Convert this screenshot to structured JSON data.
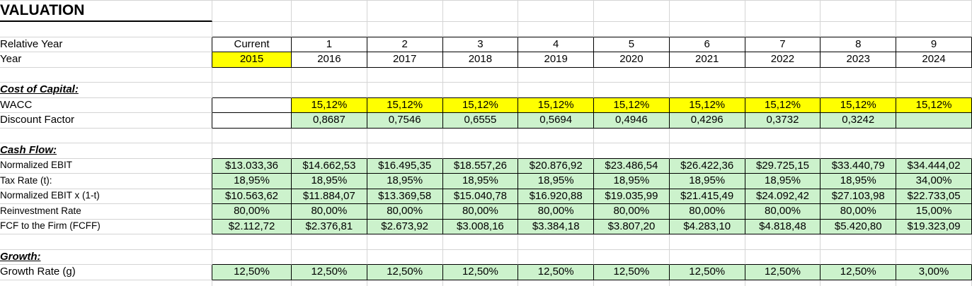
{
  "title": "VALUATION",
  "colors": {
    "yellow": "#FFFF00",
    "green": "#CCF2CC",
    "white": "#FFFFFF",
    "gridline": "#D4D4D4",
    "box_border": "#000000"
  },
  "rows": [
    {
      "type": "title",
      "label": "VALUATION"
    },
    {
      "type": "empty"
    },
    {
      "type": "data",
      "label": "Relative Year",
      "fill": "white",
      "cells": [
        "Current",
        "1",
        "2",
        "3",
        "4",
        "5",
        "6",
        "7",
        "8",
        "9"
      ]
    },
    {
      "type": "data",
      "label": "Year",
      "fill": "white",
      "cell_fills": {
        "0": "yellow"
      },
      "cells": [
        "2015",
        "2016",
        "2017",
        "2018",
        "2019",
        "2020",
        "2021",
        "2022",
        "2023",
        "2024"
      ]
    },
    {
      "type": "empty"
    },
    {
      "type": "section",
      "label": "Cost of Capital:"
    },
    {
      "type": "data",
      "label": "WACC",
      "fill": "yellow",
      "cell_fills": {
        "0": "white"
      },
      "cells": [
        "",
        "15,12%",
        "15,12%",
        "15,12%",
        "15,12%",
        "15,12%",
        "15,12%",
        "15,12%",
        "15,12%",
        "15,12%"
      ]
    },
    {
      "type": "data",
      "label": "Discount Factor",
      "fill": "green",
      "cell_fills": {
        "0": "white"
      },
      "cells": [
        "",
        "0,8687",
        "0,7546",
        "0,6555",
        "0,5694",
        "0,4946",
        "0,4296",
        "0,3732",
        "0,3242",
        ""
      ]
    },
    {
      "type": "empty"
    },
    {
      "type": "section",
      "label": "Cash Flow:"
    },
    {
      "type": "data",
      "label": "Normalized EBIT",
      "small_label": true,
      "fill": "green",
      "cells": [
        "$13.033,36",
        "$14.662,53",
        "$16.495,35",
        "$18.557,26",
        "$20.876,92",
        "$23.486,54",
        "$26.422,36",
        "$29.725,15",
        "$33.440,79",
        "$34.444,02"
      ]
    },
    {
      "type": "data",
      "label": "Tax Rate (t):",
      "small_label": true,
      "fill": "green",
      "cells": [
        "18,95%",
        "18,95%",
        "18,95%",
        "18,95%",
        "18,95%",
        "18,95%",
        "18,95%",
        "18,95%",
        "18,95%",
        "34,00%"
      ]
    },
    {
      "type": "data",
      "label": "Normalized EBIT x (1-t)",
      "small_label": true,
      "fill": "green",
      "cells": [
        "$10.563,62",
        "$11.884,07",
        "$13.369,58",
        "$15.040,78",
        "$16.920,88",
        "$19.035,99",
        "$21.415,49",
        "$24.092,42",
        "$27.103,98",
        "$22.733,05"
      ]
    },
    {
      "type": "data",
      "label": "Reinvestment Rate",
      "small_label": true,
      "fill": "green",
      "cells": [
        "80,00%",
        "80,00%",
        "80,00%",
        "80,00%",
        "80,00%",
        "80,00%",
        "80,00%",
        "80,00%",
        "80,00%",
        "15,00%"
      ]
    },
    {
      "type": "data",
      "label": "FCF to the Firm (FCFF)",
      "small_label": true,
      "fill": "green",
      "cells": [
        "$2.112,72",
        "$2.376,81",
        "$2.673,92",
        "$3.008,16",
        "$3.384,18",
        "$3.807,20",
        "$4.283,10",
        "$4.818,48",
        "$5.420,80",
        "$19.323,09"
      ]
    },
    {
      "type": "empty"
    },
    {
      "type": "section",
      "label": "Growth:"
    },
    {
      "type": "data",
      "label": "Growth Rate (g)",
      "fill": "green",
      "cells": [
        "12,50%",
        "12,50%",
        "12,50%",
        "12,50%",
        "12,50%",
        "12,50%",
        "12,50%",
        "12,50%",
        "12,50%",
        "3,00%"
      ]
    },
    {
      "type": "empty"
    }
  ]
}
